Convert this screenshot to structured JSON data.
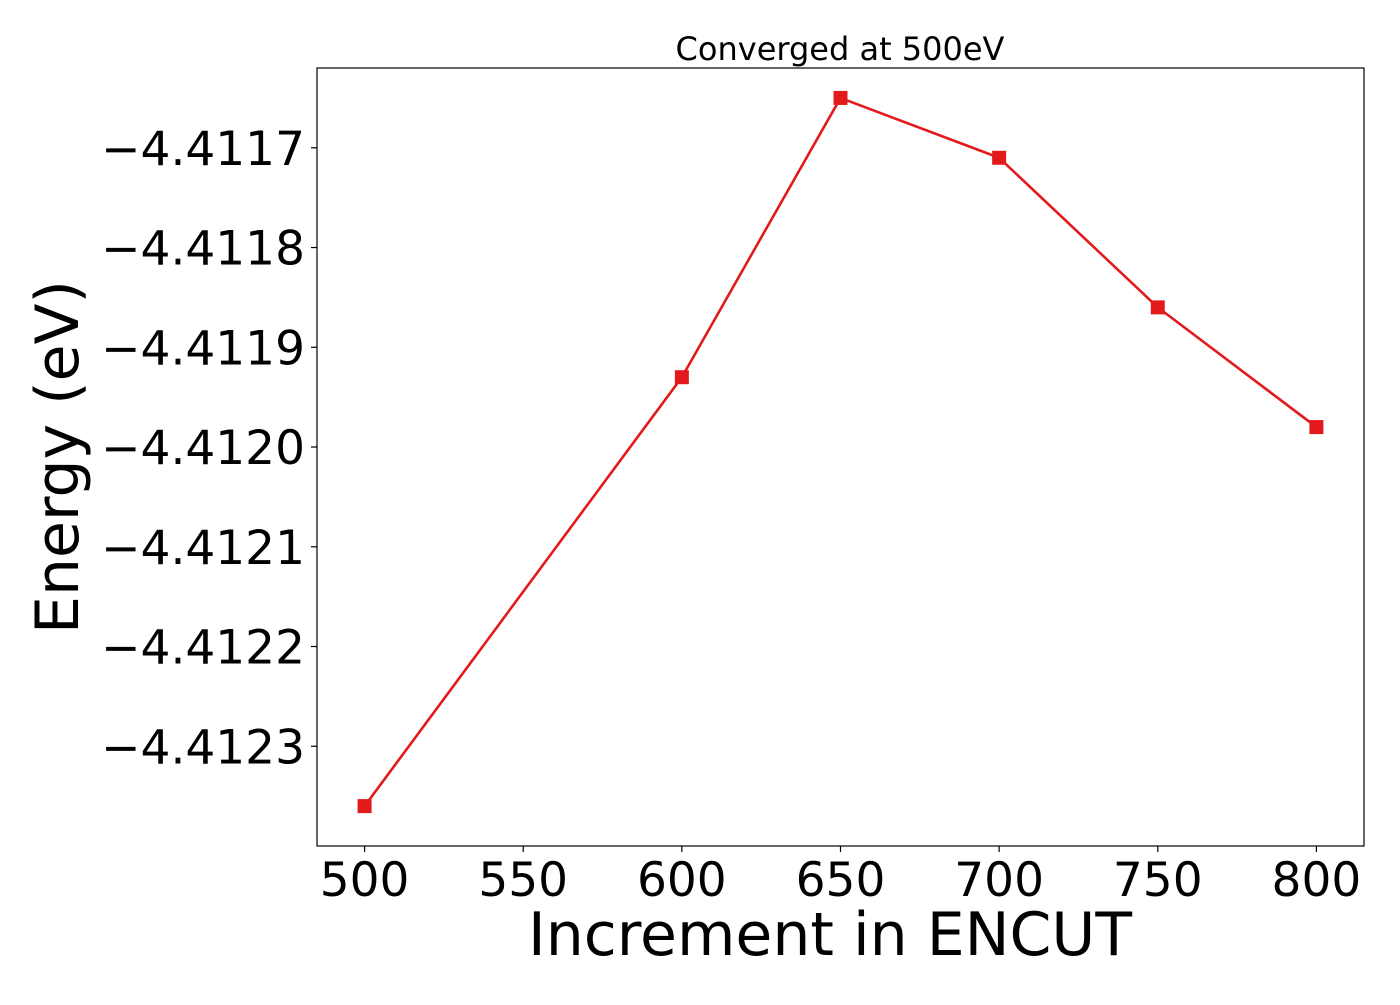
{
  "chart_data": {
    "type": "line",
    "title": "Converged at 500eV",
    "xlabel": "Increment in ENCUT",
    "ylabel": "Energy (eV)",
    "x": [
      500,
      600,
      650,
      700,
      750,
      800
    ],
    "series": [
      {
        "values": [
          -4.41236,
          -4.41193,
          -4.41165,
          -4.41171,
          -4.41186,
          -4.41198
        ],
        "color": "#e31a1c",
        "marker": "square"
      }
    ],
    "xlim": [
      485,
      815
    ],
    "ylim": [
      -4.4124,
      -4.41162
    ],
    "xticks": [
      500,
      550,
      600,
      650,
      700,
      750,
      800
    ],
    "xtick_labels": [
      "500",
      "550",
      "600",
      "650",
      "700",
      "750",
      "800"
    ],
    "yticks": [
      -4.4117,
      -4.4118,
      -4.4119,
      -4.412,
      -4.4121,
      -4.4122,
      -4.4123
    ],
    "ytick_labels": [
      "−4.4117",
      "−4.4118",
      "−4.4119",
      "−4.4120",
      "−4.4121",
      "−4.4122",
      "−4.4123"
    ],
    "grid": false,
    "legend": false
  }
}
